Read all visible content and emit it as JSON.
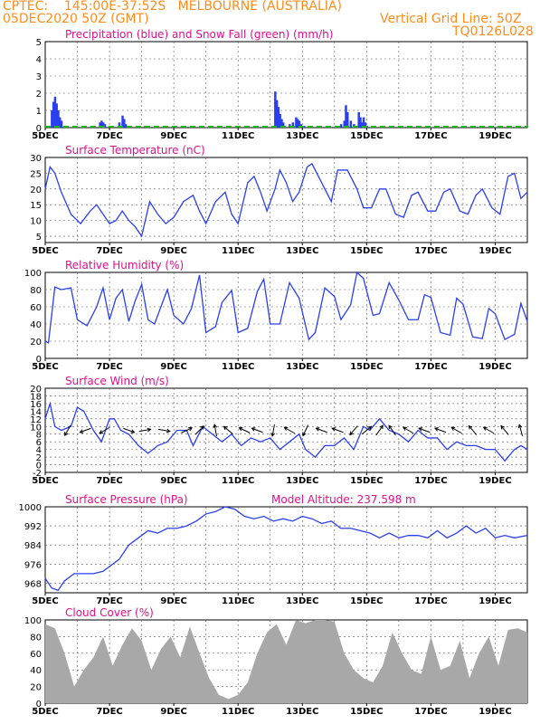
{
  "header": {
    "line1": "CPTEC:    145:00E-37:52S   MELBOURNE (AUSTRALIA)",
    "line2": "05DEC2020 50Z (GMT)",
    "grid_note": "Vertical Grid Line: 50Z",
    "code": "TQ0126L028"
  },
  "colors": {
    "header": "#ff8c1a",
    "title": "#e0108a",
    "line": "#2a3ff0",
    "snow": "#18b818",
    "cloud": "#a8a8a8",
    "grid": "#555555"
  },
  "chart_data": [
    {
      "type": "bar",
      "title": "Precipitation (blue) and Snow Fall (green) (mm/h)",
      "xlabels": [
        "5DEC",
        "7DEC",
        "9DEC",
        "11DEC",
        "13DEC",
        "15DEC",
        "17DEC",
        "19DEC"
      ],
      "x_range_days": [
        5,
        20
      ],
      "ylim": [
        0,
        5
      ],
      "yticks": [
        0,
        1,
        2,
        3,
        4,
        5
      ],
      "grid": true,
      "series": [
        {
          "name": "Precipitation",
          "color": "#2a3ff0",
          "points": [
            [
              5.2,
              1.0
            ],
            [
              5.25,
              1.5
            ],
            [
              5.3,
              1.8
            ],
            [
              5.35,
              1.4
            ],
            [
              5.4,
              1.0
            ],
            [
              5.45,
              0.6
            ],
            [
              5.5,
              0.4
            ],
            [
              6.7,
              0.3
            ],
            [
              6.75,
              0.4
            ],
            [
              6.8,
              0.3
            ],
            [
              6.85,
              0.2
            ],
            [
              7.1,
              0.1
            ],
            [
              7.3,
              0.3
            ],
            [
              7.4,
              0.7
            ],
            [
              7.45,
              0.5
            ],
            [
              7.5,
              0.2
            ],
            [
              8.1,
              0.1
            ],
            [
              8.2,
              0.05
            ],
            [
              9.0,
              0.05
            ],
            [
              10.0,
              0.03
            ],
            [
              12.15,
              2.1
            ],
            [
              12.2,
              1.6
            ],
            [
              12.25,
              1.2
            ],
            [
              12.3,
              0.8
            ],
            [
              12.35,
              0.5
            ],
            [
              12.4,
              0.3
            ],
            [
              12.6,
              0.2
            ],
            [
              12.7,
              0.3
            ],
            [
              12.8,
              0.6
            ],
            [
              12.85,
              0.5
            ],
            [
              12.9,
              0.4
            ],
            [
              12.95,
              0.2
            ],
            [
              13.0,
              0.1
            ],
            [
              13.05,
              0.1
            ],
            [
              14.2,
              0.2
            ],
            [
              14.3,
              0.4
            ],
            [
              14.35,
              1.3
            ],
            [
              14.4,
              0.9
            ],
            [
              14.5,
              0.4
            ],
            [
              14.6,
              0.2
            ],
            [
              14.65,
              0.1
            ],
            [
              14.75,
              0.9
            ],
            [
              14.8,
              0.6
            ],
            [
              14.85,
              0.3
            ],
            [
              14.9,
              0.6
            ],
            [
              14.95,
              0.3
            ],
            [
              15.0,
              0.1
            ],
            [
              16.0,
              0.03
            ],
            [
              17.0,
              0.03
            ],
            [
              19.0,
              0.03
            ]
          ]
        },
        {
          "name": "Snow Fall",
          "color": "#18b818",
          "points": [
            [
              5.0,
              0.0
            ],
            [
              20.0,
              0.0
            ]
          ]
        }
      ]
    },
    {
      "type": "line",
      "title": "Surface Temperature (nC)",
      "xlabels": [
        "5DEC",
        "7DEC",
        "9DEC",
        "11DEC",
        "13DEC",
        "15DEC",
        "17DEC",
        "19DEC"
      ],
      "x_range_days": [
        5,
        20
      ],
      "ylim": [
        3,
        30
      ],
      "yticks": [
        5,
        10,
        15,
        20,
        25,
        30
      ],
      "grid": true,
      "x": [
        5.0,
        5.15,
        5.3,
        5.5,
        5.8,
        6.1,
        6.4,
        6.6,
        6.8,
        7.0,
        7.2,
        7.4,
        7.6,
        7.8,
        8.0,
        8.25,
        8.5,
        8.75,
        9.0,
        9.3,
        9.6,
        9.8,
        10.0,
        10.3,
        10.6,
        10.8,
        11.0,
        11.3,
        11.5,
        11.7,
        11.9,
        12.15,
        12.3,
        12.5,
        12.7,
        12.9,
        13.15,
        13.3,
        13.6,
        13.9,
        14.1,
        14.4,
        14.7,
        14.9,
        15.15,
        15.4,
        15.6,
        15.9,
        16.15,
        16.4,
        16.6,
        16.9,
        17.15,
        17.4,
        17.6,
        17.9,
        18.15,
        18.4,
        18.6,
        18.9,
        19.15,
        19.4,
        19.6,
        19.8,
        20.0
      ],
      "y": [
        20,
        27,
        25,
        19,
        12,
        9,
        13,
        15,
        12,
        9,
        10,
        13,
        10,
        8,
        5,
        16,
        12,
        9,
        11,
        16,
        18,
        13,
        9,
        16,
        19,
        12,
        9,
        22,
        24,
        19,
        13,
        20,
        26,
        22,
        16,
        19,
        27,
        28,
        22,
        16,
        26,
        26,
        20,
        14,
        14,
        20,
        20,
        12,
        11,
        18,
        19,
        13,
        13,
        19,
        20,
        13,
        12,
        18,
        20,
        14,
        12,
        24,
        25,
        17,
        19
      ]
    },
    {
      "type": "line",
      "title": "Relative Humidity (%)",
      "xlabels": [
        "5DEC",
        "7DEC",
        "9DEC",
        "11DEC",
        "13DEC",
        "15DEC",
        "17DEC",
        "19DEC"
      ],
      "x_range_days": [
        5,
        20
      ],
      "ylim": [
        0,
        100
      ],
      "yticks": [
        0,
        20,
        40,
        60,
        80,
        100
      ],
      "grid": true,
      "x": [
        5.0,
        5.1,
        5.3,
        5.5,
        5.8,
        6.0,
        6.3,
        6.6,
        6.8,
        7.0,
        7.2,
        7.4,
        7.6,
        7.8,
        8.0,
        8.2,
        8.4,
        8.6,
        8.8,
        9.0,
        9.3,
        9.55,
        9.8,
        10.0,
        10.3,
        10.5,
        10.8,
        11.0,
        11.3,
        11.6,
        11.8,
        12.0,
        12.3,
        12.6,
        12.9,
        13.2,
        13.4,
        13.7,
        14.0,
        14.2,
        14.5,
        14.7,
        14.9,
        15.2,
        15.4,
        15.7,
        16.0,
        16.3,
        16.6,
        16.8,
        17.0,
        17.3,
        17.6,
        17.8,
        18.0,
        18.3,
        18.6,
        18.8,
        19.0,
        19.3,
        19.6,
        19.8,
        20.0
      ],
      "y": [
        20,
        18,
        83,
        80,
        82,
        45,
        38,
        60,
        82,
        45,
        70,
        80,
        43,
        67,
        86,
        45,
        40,
        60,
        80,
        50,
        40,
        58,
        97,
        30,
        37,
        65,
        79,
        30,
        35,
        78,
        92,
        40,
        40,
        88,
        70,
        22,
        30,
        82,
        72,
        45,
        62,
        100,
        93,
        50,
        52,
        88,
        68,
        45,
        45,
        74,
        71,
        30,
        27,
        70,
        63,
        25,
        23,
        58,
        52,
        22,
        28,
        64,
        43
      ]
    },
    {
      "type": "line",
      "title": "Surface Wind (m/s)",
      "xlabels": [
        "5DEC",
        "7DEC",
        "9DEC",
        "11DEC",
        "13DEC",
        "15DEC",
        "17DEC",
        "19DEC"
      ],
      "x_range_days": [
        5,
        20
      ],
      "ylim": [
        -2,
        20
      ],
      "yticks": [
        -2,
        0,
        2,
        4,
        6,
        8,
        10,
        12,
        14,
        16,
        18,
        20
      ],
      "grid": true,
      "x": [
        5.0,
        5.15,
        5.3,
        5.5,
        5.8,
        6.0,
        6.2,
        6.5,
        6.75,
        7.0,
        7.15,
        7.35,
        7.6,
        7.9,
        8.2,
        8.5,
        8.8,
        9.1,
        9.4,
        9.6,
        9.9,
        10.2,
        10.5,
        10.8,
        11.1,
        11.4,
        11.7,
        12.0,
        12.3,
        12.6,
        12.9,
        13.1,
        13.4,
        13.7,
        14.0,
        14.3,
        14.6,
        14.9,
        15.1,
        15.4,
        15.7,
        16.0,
        16.3,
        16.6,
        16.9,
        17.2,
        17.5,
        17.8,
        18.1,
        18.4,
        18.7,
        19.0,
        19.3,
        19.6,
        19.8,
        20.0
      ],
      "y": [
        12,
        16,
        10,
        9,
        10,
        15,
        14,
        9,
        6,
        12,
        12,
        9,
        8,
        5,
        3,
        5,
        6,
        9,
        9,
        5,
        10,
        8,
        6,
        8,
        5,
        7,
        6,
        7,
        4,
        6,
        8,
        4,
        2,
        5,
        5,
        7,
        4,
        10,
        9,
        12,
        9,
        8,
        6,
        9,
        7,
        7,
        4,
        6,
        5,
        5,
        4,
        4,
        1,
        4,
        5,
        4
      ],
      "arrows": [
        [
          5.7,
          -120
        ],
        [
          6.25,
          -160
        ],
        [
          6.85,
          -150
        ],
        [
          7.6,
          -20
        ],
        [
          8.1,
          10
        ],
        [
          8.7,
          -10
        ],
        [
          9.4,
          25
        ],
        [
          9.8,
          45
        ],
        [
          10.3,
          100
        ],
        [
          10.7,
          140
        ],
        [
          11.2,
          155
        ],
        [
          11.6,
          160
        ],
        [
          12.1,
          -100
        ],
        [
          12.6,
          150
        ],
        [
          13.1,
          -115
        ],
        [
          13.6,
          160
        ],
        [
          14.1,
          160
        ],
        [
          14.6,
          -130
        ],
        [
          15.0,
          40
        ],
        [
          15.4,
          55
        ],
        [
          15.8,
          125
        ],
        [
          16.3,
          150
        ],
        [
          16.8,
          160
        ],
        [
          17.3,
          160
        ],
        [
          17.8,
          150
        ],
        [
          18.3,
          130
        ],
        [
          18.8,
          150
        ],
        [
          19.3,
          130
        ],
        [
          19.8,
          105
        ]
      ]
    },
    {
      "type": "line",
      "title": "Surface Pressure (hPa)",
      "annotation": "Model Altitude: 237.598 m",
      "xlabels": [
        "5DEC",
        "7DEC",
        "9DEC",
        "11DEC",
        "13DEC",
        "15DEC",
        "17DEC",
        "19DEC"
      ],
      "x_range_days": [
        5,
        20
      ],
      "ylim": [
        964,
        1000
      ],
      "yticks": [
        968,
        976,
        984,
        992,
        1000
      ],
      "grid": true,
      "x": [
        5.0,
        5.2,
        5.4,
        5.6,
        5.9,
        6.2,
        6.5,
        6.8,
        7.0,
        7.3,
        7.6,
        7.9,
        8.2,
        8.5,
        8.8,
        9.1,
        9.4,
        9.7,
        10.0,
        10.3,
        10.6,
        10.9,
        11.2,
        11.5,
        11.8,
        12.1,
        12.4,
        12.7,
        13.0,
        13.3,
        13.6,
        13.9,
        14.2,
        14.5,
        14.8,
        15.1,
        15.4,
        15.7,
        16.0,
        16.3,
        16.6,
        16.9,
        17.2,
        17.5,
        17.8,
        18.1,
        18.4,
        18.7,
        19.0,
        19.3,
        19.6,
        20.0
      ],
      "y": [
        970,
        966,
        965,
        969,
        972,
        972,
        972,
        973,
        975,
        978,
        984,
        987,
        990,
        989,
        991,
        991,
        992,
        994,
        997,
        998,
        1000,
        999,
        996,
        995,
        996,
        994,
        995,
        994,
        996,
        995,
        993,
        994,
        991,
        991,
        990,
        989,
        987,
        989,
        987,
        988,
        988,
        987,
        990,
        987,
        989,
        992,
        989,
        991,
        987,
        988,
        987,
        988
      ]
    },
    {
      "type": "bar",
      "title": "Cloud Cover (%)",
      "xlabels": [
        "5DEC",
        "7DEC",
        "9DEC",
        "11DEC",
        "13DEC",
        "15DEC",
        "17DEC",
        "19DEC"
      ],
      "x_range_days": [
        5,
        20
      ],
      "ylim": [
        0,
        100
      ],
      "yticks": [
        0,
        20,
        40,
        60,
        80,
        100
      ],
      "grid": true,
      "x": [
        5.0,
        5.3,
        5.6,
        5.9,
        6.2,
        6.5,
        6.8,
        7.1,
        7.4,
        7.7,
        8.0,
        8.3,
        8.6,
        8.9,
        9.2,
        9.5,
        9.8,
        10.1,
        10.4,
        10.7,
        11.0,
        11.3,
        11.6,
        11.9,
        12.2,
        12.5,
        12.8,
        13.1,
        13.4,
        13.7,
        14.0,
        14.3,
        14.6,
        14.9,
        15.2,
        15.5,
        15.8,
        16.1,
        16.4,
        16.7,
        17.0,
        17.3,
        17.6,
        17.9,
        18.2,
        18.5,
        18.8,
        19.1,
        19.4,
        19.7,
        20.0
      ],
      "y": [
        95,
        90,
        60,
        20,
        40,
        55,
        80,
        45,
        70,
        90,
        75,
        40,
        65,
        80,
        55,
        92,
        60,
        30,
        10,
        5,
        10,
        25,
        60,
        85,
        95,
        70,
        100,
        96,
        100,
        100,
        98,
        60,
        40,
        30,
        25,
        45,
        85,
        60,
        40,
        35,
        80,
        40,
        45,
        75,
        30,
        60,
        80,
        45,
        88,
        90,
        85
      ]
    }
  ]
}
